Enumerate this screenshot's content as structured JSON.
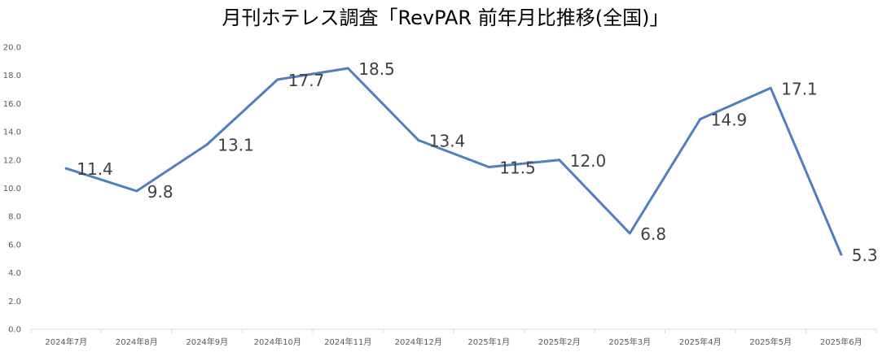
{
  "chart_data": {
    "type": "line",
    "title": "月刊ホテレス調査「RevPAR 前年月比推移(全国)」",
    "categories": [
      "2024年7月",
      "2024年8月",
      "2024年9月",
      "2024年10月",
      "2024年11月",
      "2024年12月",
      "2025年1月",
      "2025年2月",
      "2025年3月",
      "2025年4月",
      "2025年5月",
      "2025年6月"
    ],
    "series": [
      {
        "values": [
          11.4,
          9.8,
          13.1,
          17.7,
          18.5,
          13.4,
          11.5,
          12.0,
          6.8,
          14.9,
          17.1,
          5.3
        ],
        "color": "#4f7fbf"
      }
    ],
    "data_labels": [
      "11.4",
      "9.8",
      "13.1",
      "17.7",
      "18.5",
      "13.4",
      "11.5",
      "12.0",
      "6.8",
      "14.9",
      "17.1",
      "5.3"
    ],
    "ylim": [
      0,
      20
    ],
    "yticks": [
      "0.0",
      "2.0",
      "4.0",
      "6.0",
      "8.0",
      "10.0",
      "12.0",
      "14.0",
      "16.0",
      "18.0",
      "20.0"
    ],
    "grid": false,
    "legend": "none",
    "xlabel": "",
    "ylabel": ""
  }
}
